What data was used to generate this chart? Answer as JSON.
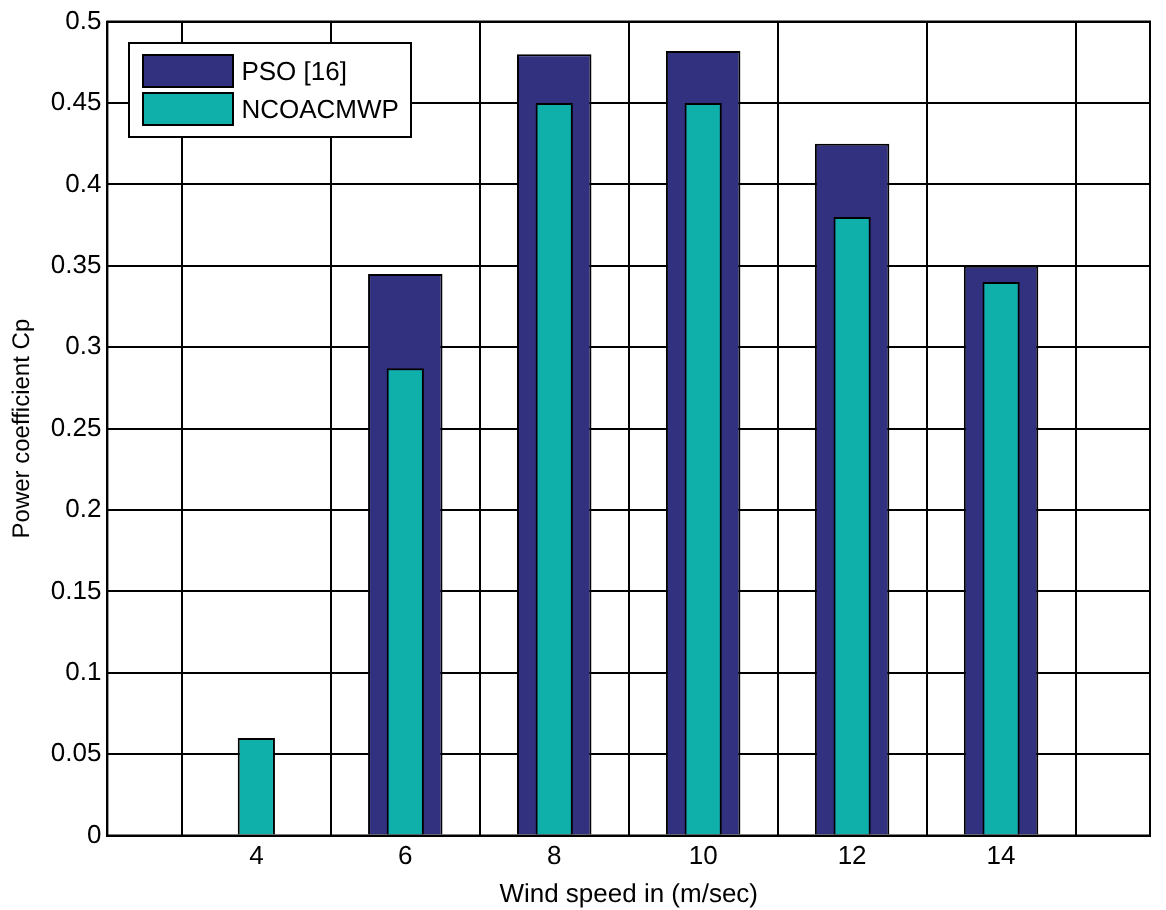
{
  "chart_data": {
    "type": "bar",
    "xlabel": "Wind speed in (m/sec)",
    "ylabel": "Power coefficient Cp",
    "x": [
      4,
      6,
      8,
      10,
      12,
      14
    ],
    "series": [
      {
        "name": "PSO [16]",
        "color": "#313180",
        "values": [
          null,
          0.345,
          0.48,
          0.482,
          0.425,
          0.35
        ]
      },
      {
        "name": "NCOACMWP",
        "color": "#0fb0aa",
        "values": [
          0.06,
          0.287,
          0.45,
          0.45,
          0.38,
          0.34
        ]
      }
    ],
    "xlim": [
      2,
      16
    ],
    "xticks": [
      4,
      6,
      8,
      10,
      12,
      14
    ],
    "ylim": [
      0,
      0.5
    ],
    "yticks": [
      0,
      0.05,
      0.1,
      0.15,
      0.2,
      0.25,
      0.3,
      0.35,
      0.4,
      0.45,
      0.5
    ],
    "grid": true,
    "legend": "top left"
  }
}
